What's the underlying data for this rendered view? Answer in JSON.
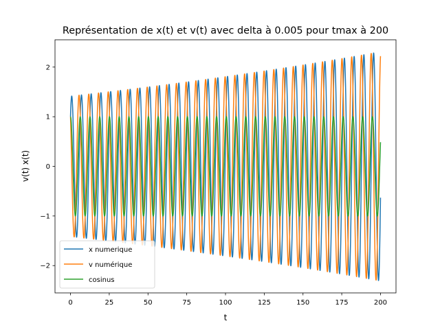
{
  "chart_data": {
    "type": "line",
    "title": "Représentation de x(t) et v(t) avec delta à 0.005 pour tmax à 200",
    "xlabel": "t",
    "ylabel": "v(t) x(t)",
    "xlim": [
      -10,
      210
    ],
    "ylim": [
      -2.55,
      2.55
    ],
    "xticks": [
      0,
      25,
      50,
      75,
      100,
      125,
      150,
      175,
      200
    ],
    "yticks": [
      -2,
      -1,
      0,
      1,
      2
    ],
    "ytick_labels": [
      "−2",
      "−1",
      "0",
      "1",
      "2"
    ],
    "t_range": [
      0,
      200
    ],
    "period": 6.2832,
    "growth_per_unit_t": 0.00245,
    "grid": false,
    "legend_position": "lower-left",
    "series": [
      {
        "name": "x numerique",
        "color": "#1f77b4",
        "formula": "sqrt(2)*exp(0.00245*t)*cos(t - pi/4)",
        "start_value": 1.0,
        "end_value": -0.65,
        "amplitude_start": 1.41,
        "amplitude_end": 2.3
      },
      {
        "name": "v numérique",
        "color": "#ff7f0e",
        "formula": "sqrt(2)*exp(0.00245*t)*cos(t + pi/4)",
        "start_value": 1.0,
        "end_value": 2.25,
        "amplitude_start": 1.41,
        "amplitude_end": 2.3
      },
      {
        "name": "cosinus",
        "color": "#2ca02c",
        "formula": "cos(t)",
        "start_value": 1.0,
        "end_value": 0.49,
        "amplitude_start": 1.0,
        "amplitude_end": 1.0
      }
    ]
  }
}
